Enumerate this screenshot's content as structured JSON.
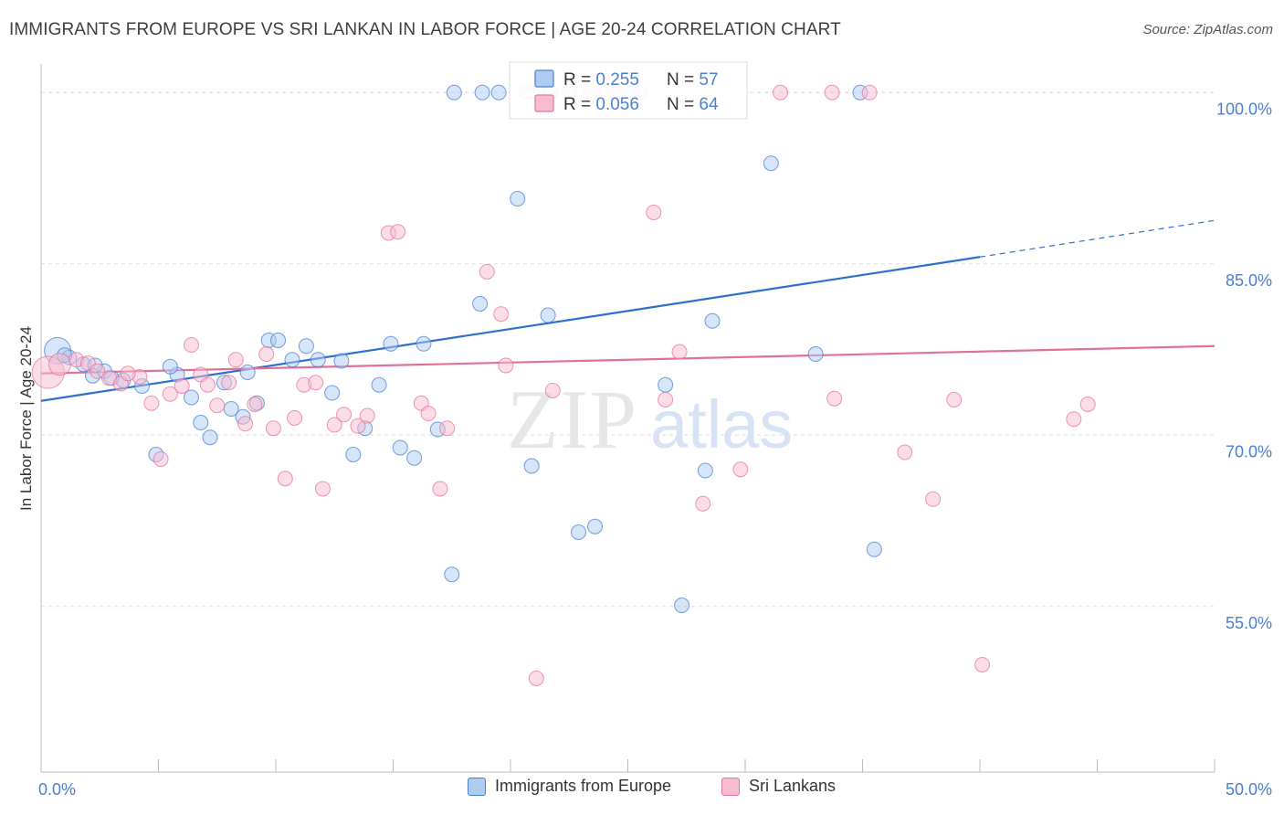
{
  "title": "IMMIGRANTS FROM EUROPE VS SRI LANKAN IN LABOR FORCE | AGE 20-24 CORRELATION CHART",
  "source_label": "Source: ZipAtlas.com",
  "watermark": {
    "part1": "ZIP",
    "part2": "atlas"
  },
  "colors": {
    "blue": "#4a7fd0",
    "blue_fill": "#aecbf0",
    "blue_line": "#2d6fcc",
    "pink": "#e8739c",
    "pink_fill": "#f7bcd0",
    "pink_line": "#e07099",
    "axis_text": "#4a7fd0",
    "grid": "#dddddd"
  },
  "legend_top": {
    "rows": [
      {
        "r_label": "R = ",
        "r_value": "0.255",
        "n_label": "N = ",
        "n_value": "57"
      },
      {
        "r_label": "R = ",
        "r_value": "0.056",
        "n_label": "N = ",
        "n_value": "64"
      }
    ]
  },
  "legend_bottom": [
    "Immigrants from Europe",
    "Sri Lankans"
  ],
  "chart_data": {
    "type": "scatter",
    "title": "IMMIGRANTS FROM EUROPE VS SRI LANKAN IN LABOR FORCE | AGE 20-24 CORRELATION CHART",
    "xlabel": "",
    "ylabel": "In Labor Force | Age 20-24",
    "xlim": [
      0,
      50
    ],
    "ylim": [
      40.5,
      102.5
    ],
    "x_tick_labels": [
      "0.0%",
      "50.0%"
    ],
    "y_ticks": [
      55,
      70,
      85,
      100
    ],
    "y_tick_labels": [
      "55.0%",
      "70.0%",
      "85.0%",
      "100.0%"
    ],
    "grid": true,
    "legend_position": "top-center",
    "series": [
      {
        "name": "Immigrants from Europe",
        "r": 0.255,
        "n": 57,
        "trend": {
          "x0": 0,
          "y0": 73.0,
          "x1": 40,
          "y1": 85.6,
          "dash_to_x": 50,
          "dash_to_y": 88.8
        },
        "points": [
          [
            0.7,
            77.4,
            1.8
          ],
          [
            1.2,
            76.8,
            1
          ],
          [
            1.8,
            76.2,
            1
          ],
          [
            2.2,
            75.2,
            1
          ],
          [
            2.7,
            75.6,
            1
          ],
          [
            3.5,
            74.8,
            1
          ],
          [
            4.3,
            74.3,
            1
          ],
          [
            4.9,
            68.3,
            1
          ],
          [
            5.8,
            75.3,
            1
          ],
          [
            6.4,
            73.3,
            1
          ],
          [
            6.8,
            71.1,
            1
          ],
          [
            7.2,
            69.8,
            1
          ],
          [
            7.8,
            74.6,
            1
          ],
          [
            8.1,
            72.3,
            1
          ],
          [
            8.6,
            71.6,
            1
          ],
          [
            9.2,
            72.8,
            1
          ],
          [
            9.7,
            78.3,
            1
          ],
          [
            10.1,
            78.3,
            1
          ],
          [
            10.7,
            76.6,
            1
          ],
          [
            11.3,
            77.8,
            1
          ],
          [
            11.8,
            76.6,
            1
          ],
          [
            12.4,
            73.7,
            1
          ],
          [
            12.8,
            76.5,
            1
          ],
          [
            13.3,
            68.3,
            1
          ],
          [
            13.8,
            70.6,
            1
          ],
          [
            14.4,
            74.4,
            1
          ],
          [
            14.9,
            78.0,
            1
          ],
          [
            15.3,
            68.9,
            1
          ],
          [
            15.9,
            68.0,
            1
          ],
          [
            16.3,
            78.0,
            1
          ],
          [
            16.9,
            70.5,
            1
          ],
          [
            17.5,
            57.8,
            1
          ],
          [
            17.6,
            100.0,
            1
          ],
          [
            18.8,
            100.0,
            1
          ],
          [
            18.7,
            81.5,
            1
          ],
          [
            19.5,
            100.0,
            1
          ],
          [
            20.3,
            90.7,
            1
          ],
          [
            20.9,
            67.3,
            1
          ],
          [
            21.7,
            100.0,
            1
          ],
          [
            21.6,
            80.5,
            1
          ],
          [
            22.9,
            61.5,
            1
          ],
          [
            23.6,
            62.0,
            1
          ],
          [
            24.3,
            100.0,
            1
          ],
          [
            25.2,
            100.0,
            1
          ],
          [
            26.6,
            74.4,
            1
          ],
          [
            27.3,
            55.1,
            1
          ],
          [
            28.3,
            66.9,
            1
          ],
          [
            28.6,
            80.0,
            1
          ],
          [
            31.1,
            93.8,
            1
          ],
          [
            33.0,
            77.1,
            1
          ],
          [
            35.5,
            60.0,
            1
          ],
          [
            34.9,
            100.0,
            1
          ],
          [
            1.0,
            77.0,
            1
          ],
          [
            3.0,
            75.0,
            1
          ],
          [
            5.5,
            76.0,
            1
          ],
          [
            8.8,
            75.5,
            1
          ],
          [
            2.3,
            76.1,
            1
          ]
        ]
      },
      {
        "name": "Sri Lankans",
        "r": 0.056,
        "n": 64,
        "trend": {
          "x0": 0,
          "y0": 75.4,
          "x1": 50,
          "y1": 77.8
        },
        "points": [
          [
            0.3,
            75.5,
            2.2
          ],
          [
            0.8,
            76.2,
            1.5
          ],
          [
            1.5,
            76.6,
            1
          ],
          [
            2.0,
            76.3,
            1
          ],
          [
            2.4,
            75.6,
            1
          ],
          [
            2.9,
            75.0,
            1
          ],
          [
            3.4,
            74.5,
            1
          ],
          [
            4.2,
            75.1,
            1
          ],
          [
            4.7,
            72.8,
            1
          ],
          [
            5.1,
            67.9,
            1
          ],
          [
            5.5,
            73.6,
            1
          ],
          [
            6.0,
            74.3,
            1
          ],
          [
            6.4,
            77.9,
            1
          ],
          [
            6.8,
            75.3,
            1
          ],
          [
            7.1,
            74.4,
            1
          ],
          [
            7.5,
            72.6,
            1
          ],
          [
            8.0,
            74.6,
            1
          ],
          [
            8.3,
            76.6,
            1
          ],
          [
            8.7,
            71.0,
            1
          ],
          [
            9.1,
            72.7,
            1
          ],
          [
            9.6,
            77.1,
            1
          ],
          [
            9.9,
            70.6,
            1
          ],
          [
            10.4,
            66.2,
            1
          ],
          [
            10.8,
            71.5,
            1
          ],
          [
            11.2,
            74.4,
            1
          ],
          [
            11.7,
            74.6,
            1
          ],
          [
            12.0,
            65.3,
            1
          ],
          [
            12.5,
            70.9,
            1
          ],
          [
            12.9,
            71.8,
            1
          ],
          [
            13.5,
            70.8,
            1
          ],
          [
            13.9,
            71.7,
            1
          ],
          [
            14.8,
            87.7,
            1
          ],
          [
            15.2,
            87.8,
            1
          ],
          [
            16.2,
            72.8,
            1
          ],
          [
            16.5,
            71.9,
            1
          ],
          [
            17.0,
            65.3,
            1
          ],
          [
            17.3,
            70.6,
            1
          ],
          [
            19.0,
            84.3,
            1
          ],
          [
            19.6,
            80.6,
            1
          ],
          [
            19.8,
            76.1,
            1
          ],
          [
            20.7,
            100.0,
            1
          ],
          [
            21.1,
            48.7,
            1
          ],
          [
            21.8,
            73.9,
            1
          ],
          [
            22.5,
            100.0,
            1
          ],
          [
            23.4,
            100.0,
            1
          ],
          [
            24.1,
            100.0,
            1
          ],
          [
            24.5,
            100.0,
            1
          ],
          [
            25.5,
            100.0,
            1
          ],
          [
            26.1,
            89.5,
            1
          ],
          [
            26.6,
            73.1,
            1
          ],
          [
            27.2,
            77.3,
            1
          ],
          [
            28.2,
            64.0,
            1
          ],
          [
            29.8,
            67.0,
            1
          ],
          [
            31.5,
            100.0,
            1
          ],
          [
            33.7,
            100.0,
            1
          ],
          [
            33.8,
            73.2,
            1
          ],
          [
            35.3,
            100.0,
            1
          ],
          [
            36.8,
            68.5,
            1
          ],
          [
            38.0,
            64.4,
            1
          ],
          [
            38.9,
            73.1,
            1
          ],
          [
            40.1,
            49.9,
            1
          ],
          [
            44.0,
            71.4,
            1
          ],
          [
            44.6,
            72.7,
            1
          ],
          [
            3.7,
            75.4,
            1
          ]
        ]
      }
    ]
  }
}
